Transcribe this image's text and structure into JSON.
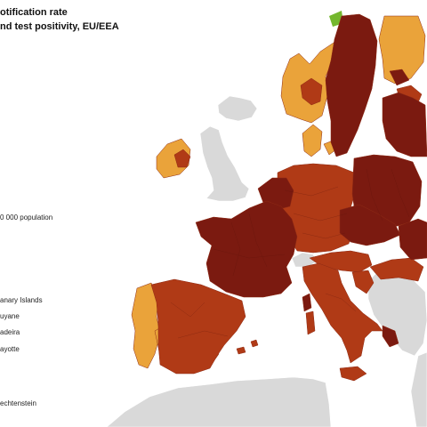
{
  "map": {
    "title_line1": "otification rate",
    "title_line2": "nd test positivity, EU/EEA",
    "legend_population": "0 000 population",
    "inset_labels": [
      "anary Islands",
      "uyane",
      "adeira",
      "ayotte",
      "echtenstein"
    ]
  },
  "colors": {
    "sea": "#ffffff",
    "non_eu": "#d9d9d9",
    "dark_red": "#7b1a10",
    "red": "#b03a16",
    "orange": "#eaa33a",
    "green": "#74b72e",
    "border": "#8e2a14"
  },
  "regions": [
    {
      "name": "iceland",
      "category": "grey"
    },
    {
      "name": "united-kingdom",
      "category": "grey"
    },
    {
      "name": "ireland",
      "category": "orange"
    },
    {
      "name": "northern-ireland",
      "category": "red"
    },
    {
      "name": "norway",
      "category": "orange"
    },
    {
      "name": "sweden",
      "category": "dark_red"
    },
    {
      "name": "finland",
      "category": "orange"
    },
    {
      "name": "denmark",
      "category": "orange"
    },
    {
      "name": "baltics",
      "category": "dark_red"
    },
    {
      "name": "france",
      "category": "dark_red"
    },
    {
      "name": "spain",
      "category": "red"
    },
    {
      "name": "portugal",
      "category": "orange"
    },
    {
      "name": "benelux",
      "category": "dark_red"
    },
    {
      "name": "germany",
      "category": "red"
    },
    {
      "name": "poland",
      "category": "dark_red"
    },
    {
      "name": "czechia",
      "category": "dark_red"
    },
    {
      "name": "austria",
      "category": "red"
    },
    {
      "name": "switzerland",
      "category": "grey"
    },
    {
      "name": "italy",
      "category": "red"
    },
    {
      "name": "balkans",
      "category": "grey"
    },
    {
      "name": "north-africa",
      "category": "grey"
    }
  ]
}
